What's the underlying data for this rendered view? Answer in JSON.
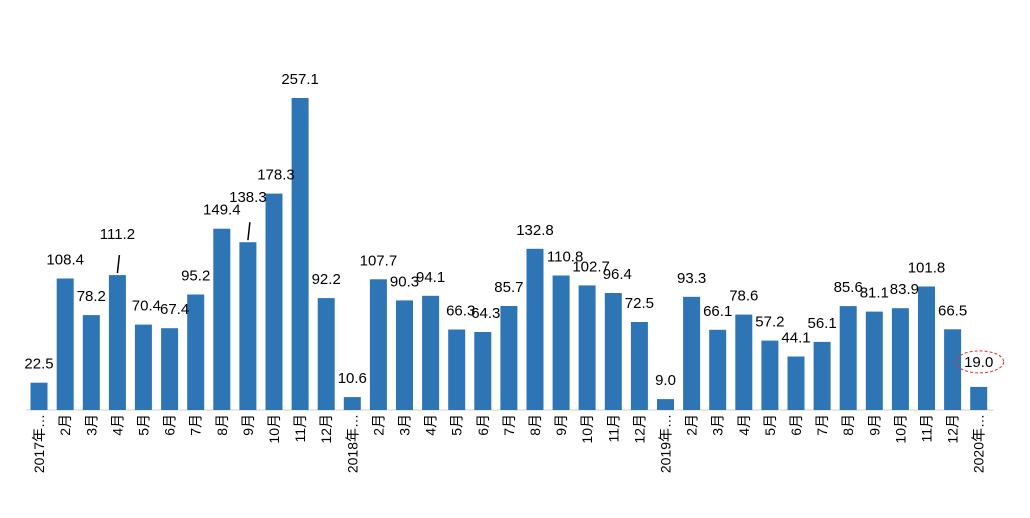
{
  "chart_data": {
    "type": "bar",
    "title": "",
    "xlabel": "",
    "ylabel": "",
    "ylim": [
      0,
      270
    ],
    "grid": false,
    "legend": "none",
    "bar_color": "#2E75B6",
    "highlight_color": "#e03030",
    "categories": [
      "2017年…",
      "2月",
      "3月",
      "4月",
      "5月",
      "6月",
      "7月",
      "8月",
      "9月",
      "10月",
      "11月",
      "12月",
      "2018年…",
      "2月",
      "3月",
      "4月",
      "5月",
      "6月",
      "7月",
      "8月",
      "9月",
      "10月",
      "11月",
      "12月",
      "2019年…",
      "2月",
      "3月",
      "4月",
      "5月",
      "6月",
      "7月",
      "8月",
      "9月",
      "10月",
      "11月",
      "12月",
      "2020年…"
    ],
    "values": [
      22.5,
      108.4,
      78.2,
      111.2,
      70.4,
      67.4,
      95.2,
      149.4,
      138.3,
      178.3,
      257.1,
      92.2,
      10.6,
      107.7,
      90.3,
      94.1,
      66.3,
      64.3,
      85.7,
      132.8,
      110.8,
      102.7,
      96.4,
      72.5,
      9.0,
      93.3,
      66.1,
      78.6,
      57.2,
      44.1,
      56.1,
      85.6,
      81.1,
      83.9,
      101.8,
      66.5,
      19.0
    ],
    "value_labels": [
      "22.5",
      "108.4",
      "78.2",
      "111.2",
      "70.4",
      "67.4",
      "95.2",
      "149.4",
      "138.3",
      "178.3",
      "257.1",
      "92.2",
      "10.6",
      "107.7",
      "90.3",
      "94.1",
      "66.3",
      "64.3",
      "85.7",
      "132.8",
      "110.8",
      "102.7",
      "96.4",
      "72.5",
      "9.0",
      "93.3",
      "66.1",
      "78.6",
      "57.2",
      "44.1",
      "56.1",
      "85.6",
      "81.1",
      "83.9",
      "101.8",
      "66.5",
      "19.0"
    ],
    "highlighted_index": 36
  }
}
